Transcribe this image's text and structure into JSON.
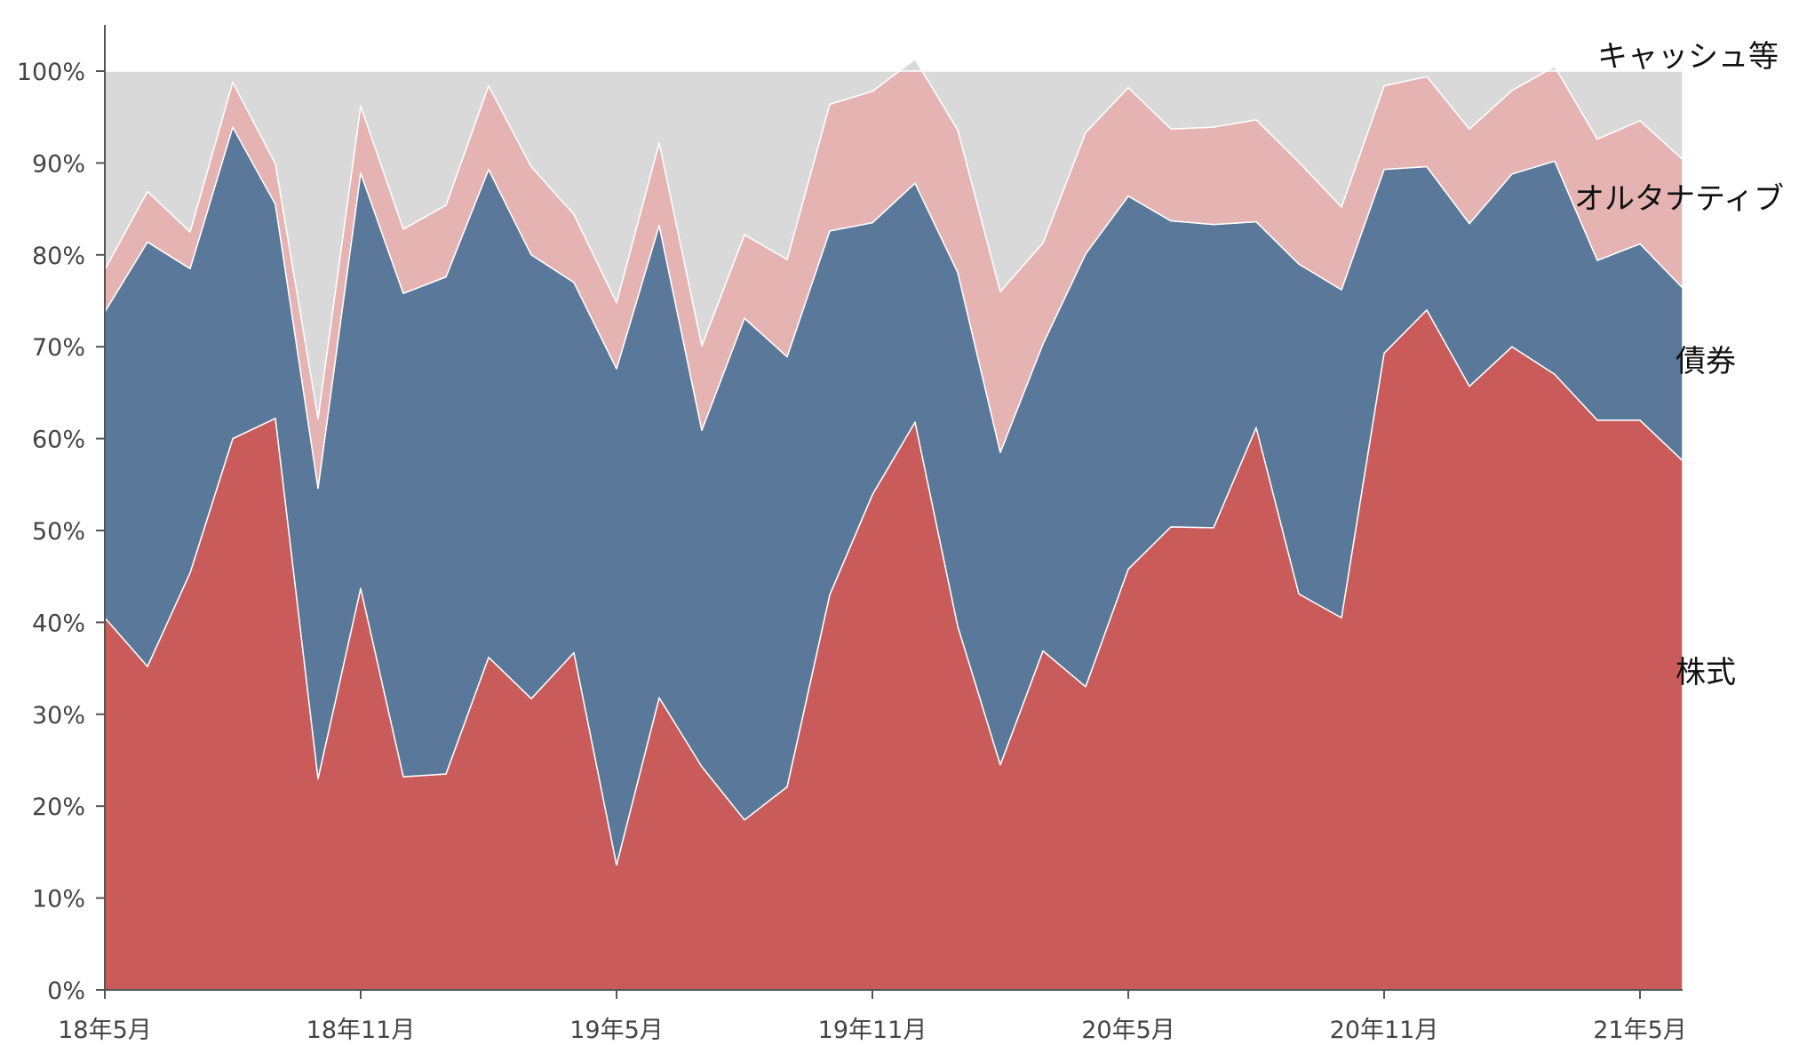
{
  "chart_data": {
    "type": "area",
    "stacked": true,
    "x": [
      "18年5月",
      "18年6月",
      "18年7月",
      "18年8月",
      "18年9月",
      "18年10月",
      "18年11月",
      "18年12月",
      "19年1月",
      "19年2月",
      "19年3月",
      "19年4月",
      "19年5月",
      "19年6月",
      "19年7月",
      "19年8月",
      "19年9月",
      "19年10月",
      "19年11月",
      "19年12月",
      "20年1月",
      "20年2月",
      "20年3月",
      "20年4月",
      "20年5月",
      "20年6月",
      "20年7月",
      "20年8月",
      "20年9月",
      "20年10月",
      "20年11月",
      "20年12月",
      "21年1月",
      "21年2月",
      "21年3月",
      "21年4月",
      "21年5月",
      "21年6月"
    ],
    "x_tick_labels": [
      "18年5月",
      "18年11月",
      "19年5月",
      "19年11月",
      "20年5月",
      "20年11月",
      "21年5月"
    ],
    "y_tick_labels": [
      "0%",
      "10%",
      "20%",
      "30%",
      "40%",
      "50%",
      "60%",
      "70%",
      "80%",
      "90%",
      "100%"
    ],
    "ylim": [
      0,
      100
    ],
    "series": [
      {
        "name": "株式",
        "color": "#c95b5b",
        "values": [
          40.5,
          35.2,
          45.4,
          60.0,
          62.2,
          23.0,
          43.7,
          23.2,
          23.5,
          36.2,
          31.7,
          36.7,
          13.6,
          31.8,
          24.3,
          18.5,
          22.1,
          43.0,
          53.9,
          61.8,
          39.6,
          24.5,
          36.9,
          33.0,
          45.8,
          50.4,
          50.3,
          61.2,
          43.1,
          40.5,
          69.3,
          74.0,
          65.7,
          70.0,
          67.0,
          62.0,
          62.0,
          57.6
        ]
      },
      {
        "name": "債券",
        "color": "#5a7899",
        "values": [
          33.3,
          46.2,
          33.1,
          33.9,
          23.3,
          31.6,
          45.2,
          52.6,
          54.1,
          53.1,
          48.3,
          40.3,
          54.0,
          51.4,
          36.6,
          54.6,
          46.8,
          39.6,
          29.6,
          26.0,
          38.5,
          34.0,
          33.4,
          47.1,
          40.6,
          33.3,
          33.0,
          22.4,
          35.9,
          35.7,
          20.0,
          15.6,
          17.7,
          18.8,
          23.2,
          17.4,
          19.2,
          18.8
        ]
      },
      {
        "name": "オルタナティブ",
        "color": "#e6b3b3",
        "values": [
          4.6,
          5.5,
          4.0,
          4.9,
          4.4,
          7.6,
          7.3,
          7.0,
          7.8,
          9.1,
          9.6,
          7.4,
          7.2,
          9.0,
          9.2,
          9.1,
          10.6,
          13.8,
          14.3,
          13.5,
          15.5,
          17.5,
          11.0,
          13.2,
          11.8,
          10.0,
          10.6,
          11.1,
          11.1,
          9.0,
          9.1,
          9.8,
          10.3,
          9.1,
          10.3,
          13.2,
          13.4,
          14.0
        ]
      },
      {
        "name": "キャッシュ等",
        "color": "#d9d9d9",
        "values": [
          21.6,
          13.1,
          17.5,
          1.2,
          10.1,
          37.8,
          3.8,
          17.2,
          14.6,
          1.6,
          10.4,
          15.6,
          25.2,
          7.8,
          29.9,
          17.8,
          20.5,
          3.6,
          2.2,
          -1.3,
          6.4,
          24.0,
          18.7,
          6.7,
          1.8,
          6.3,
          6.1,
          5.3,
          9.9,
          14.8,
          1.6,
          0.6,
          6.3,
          2.1,
          -0.5,
          7.4,
          5.4,
          9.6
        ]
      }
    ],
    "legend_placement": "right, inline labels",
    "grid": false
  }
}
